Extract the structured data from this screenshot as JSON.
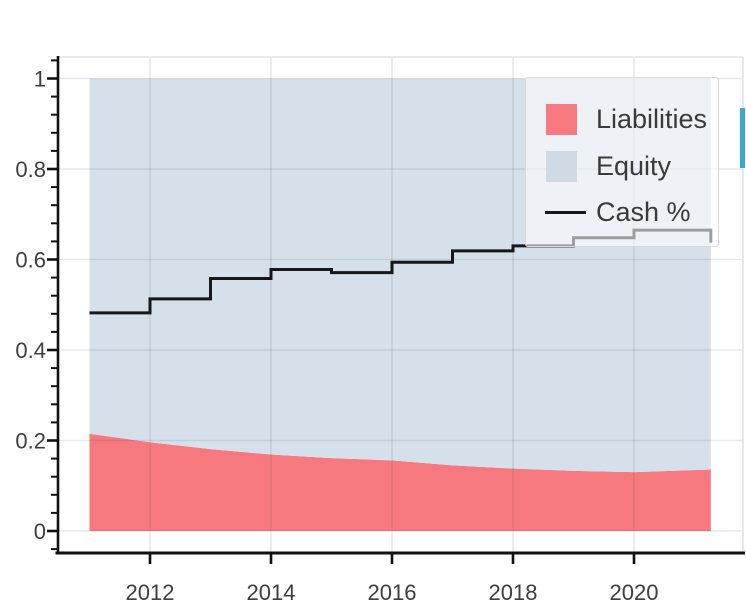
{
  "page": {
    "background": "#ffffff"
  },
  "scrollbar": {
    "thumb_color": "#3BA8CB"
  },
  "chart_data": {
    "type": "area",
    "title": "",
    "xlabel": "",
    "ylabel": "",
    "grid": true,
    "legend_position": "top-right",
    "xlim": [
      2010.48,
      2021.8
    ],
    "ylim": [
      -0.049,
      1.047
    ],
    "x_ticks": [
      2012,
      2014,
      2016,
      2018,
      2020
    ],
    "x_tick_labels": [
      "2012",
      "2014",
      "2016",
      "2018",
      "2020"
    ],
    "y_ticks": [
      0,
      0.2,
      0.4,
      0.6,
      0.8,
      1
    ],
    "y_tick_labels": [
      "0",
      "0.2",
      "0.4",
      "0.6",
      "0.8",
      "1"
    ],
    "y_minor_step": 0.04,
    "years": [
      2011,
      2012,
      2013,
      2014,
      2015,
      2016,
      2017,
      2018,
      2019,
      2020,
      2021.27
    ],
    "series": [
      {
        "name": "Liabilities",
        "type": "area",
        "color": "#F5797F",
        "values": [
          0.215,
          0.196,
          0.181,
          0.169,
          0.161,
          0.156,
          0.145,
          0.138,
          0.133,
          0.13,
          0.136
        ]
      },
      {
        "name": "Equity",
        "type": "area",
        "color": "#D6E0EB",
        "swatch_color": "#CFDAE5",
        "stacked_top": 1.0,
        "values": [
          0.785,
          0.804,
          0.819,
          0.831,
          0.839,
          0.844,
          0.855,
          0.862,
          0.867,
          0.87,
          0.864
        ]
      },
      {
        "name": "Cash %",
        "type": "step-line",
        "color": "#16161d",
        "values": [
          0.482,
          0.513,
          0.558,
          0.578,
          0.571,
          0.594,
          0.619,
          0.63,
          0.648,
          0.665,
          0.637
        ]
      }
    ],
    "colors": {
      "axis": "#111111",
      "tick_label": "#3e3e3e",
      "grid": "rgba(70,75,85,0.13)",
      "frame": "#e3e3e3"
    }
  }
}
